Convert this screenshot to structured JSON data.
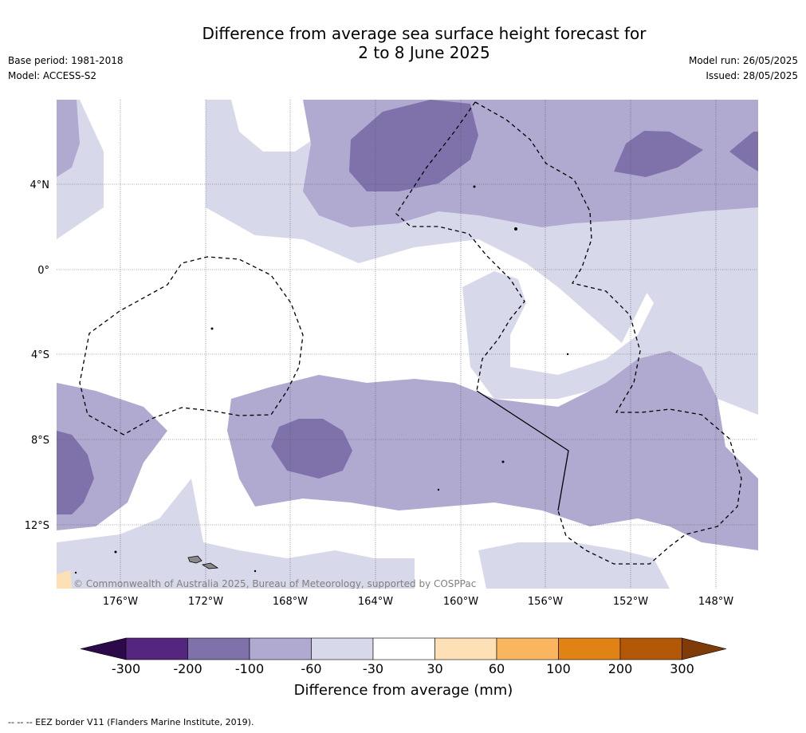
{
  "title_line1": "Difference from average sea surface height forecast for",
  "title_line2": "2 to 8 June 2025",
  "base_period": "Base period: 1981-2018",
  "model": "Model: ACCESS-S2",
  "model_run": "Model run: 26/05/2025",
  "issued": "Issued: 28/05/2025",
  "copyright": "© Commonwealth of Australia 2025, Bureau of Meteorology, supported by COSPPac",
  "lat_labels": [
    "4°N",
    "0°",
    "4°S",
    "8°S",
    "12°S"
  ],
  "lon_labels": [
    "176°W",
    "172°W",
    "168°W",
    "164°W",
    "160°W",
    "156°W",
    "152°W",
    "148°W"
  ],
  "colorbar": {
    "title": "Difference from average (mm)",
    "ticks": [
      "-300",
      "-200",
      "-100",
      "-60",
      "-30",
      "30",
      "60",
      "100",
      "200",
      "300"
    ],
    "colors": [
      "#2c0a4a",
      "#54267f",
      "#7f72ab",
      "#b0a9d0",
      "#d8d8eb",
      "#ffffff",
      "#fee0b6",
      "#f9b65f",
      "#e08214",
      "#b35806",
      "#7f3b08"
    ]
  },
  "footnote": "--  --  -- EEZ border V11 (Flanders Marine Institute, 2019)."
}
